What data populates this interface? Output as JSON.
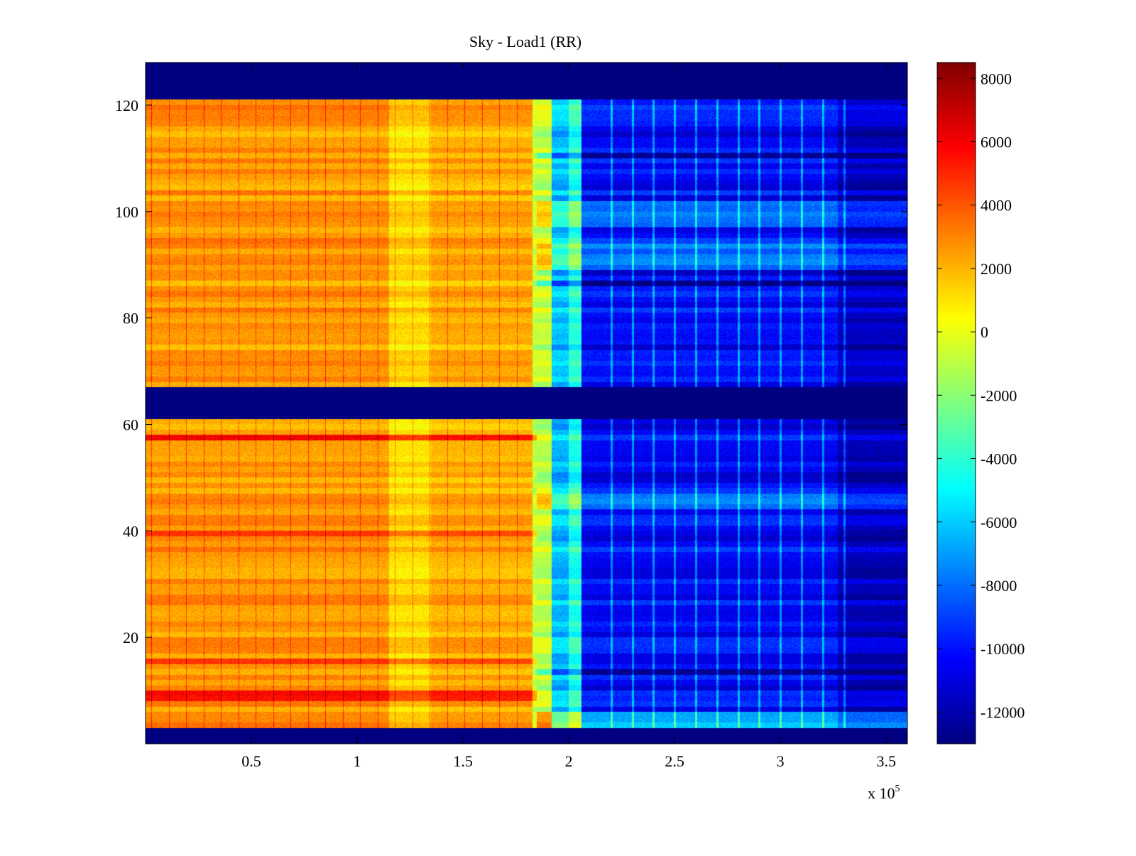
{
  "chart_data": {
    "type": "heatmap",
    "title": "Sky - Load1 (RR)",
    "xlabel": "",
    "ylabel": "",
    "x_multiplier_label": "x 10",
    "x_multiplier_exponent": "5",
    "xlim": [
      0,
      3.6
    ],
    "ylim": [
      0,
      128
    ],
    "x_ticks": [
      0.5,
      1,
      1.5,
      2,
      2.5,
      3,
      3.5
    ],
    "x_tick_labels": [
      "0.5",
      "1",
      "1.5",
      "2",
      "2.5",
      "3",
      "3.5"
    ],
    "y_ticks": [
      20,
      40,
      60,
      80,
      100,
      120
    ],
    "y_tick_labels": [
      "20",
      "40",
      "60",
      "80",
      "100",
      "120"
    ],
    "colorbar": {
      "colormap": "jet",
      "clim": [
        -13000,
        8500
      ],
      "ticks": [
        8000,
        6000,
        4000,
        2000,
        0,
        -2000,
        -4000,
        -6000,
        -8000,
        -10000,
        -12000
      ],
      "tick_labels": [
        "8000",
        "6000",
        "4000",
        "2000",
        "0",
        "-2000",
        "-4000",
        "-6000",
        "-8000",
        "-10000",
        "-12000"
      ]
    },
    "masked_rows": [
      [
        0,
        3
      ],
      [
        61,
        67
      ],
      [
        121,
        128
      ]
    ],
    "masked_value": -13000,
    "x_segments": [
      {
        "from": 0.0,
        "to": 1.15,
        "level": 2600
      },
      {
        "from": 1.15,
        "to": 1.35,
        "level": 1200
      },
      {
        "from": 1.35,
        "to": 1.83,
        "level": 2200
      },
      {
        "from": 1.83,
        "to": 1.92,
        "level": -800
      },
      {
        "from": 1.92,
        "to": 2.0,
        "level": -6200
      },
      {
        "from": 2.0,
        "to": 2.06,
        "level": -4200
      },
      {
        "from": 2.06,
        "to": 3.27,
        "level": -10200
      },
      {
        "from": 3.27,
        "to": 3.6,
        "level": -11600
      }
    ],
    "hot_rows": [
      8,
      9,
      15,
      39,
      57
    ],
    "cold_rows_right": [
      10,
      13,
      27,
      38,
      50,
      86,
      88,
      110
    ]
  }
}
